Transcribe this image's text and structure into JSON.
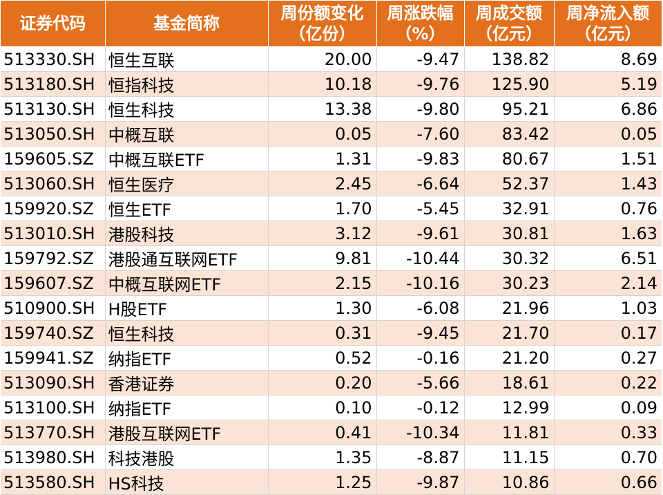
{
  "headers": [
    [
      "证券代码"
    ],
    [
      "基金简称"
    ],
    [
      "周份额变化",
      "（亿份）"
    ],
    [
      "周涨跌幅",
      "（%）"
    ],
    [
      "周成交额",
      "（亿元）"
    ],
    [
      "周净流入额",
      "（亿元）"
    ]
  ],
  "rows": [
    [
      "513330.SH",
      "恒生互联",
      "20.00",
      "-9.47",
      "138.82",
      "8.69"
    ],
    [
      "513180.SH",
      "恒指科技",
      "10.18",
      "-9.76",
      "125.90",
      "5.19"
    ],
    [
      "513130.SH",
      "恒生科技",
      "13.38",
      "-9.80",
      "95.21",
      "6.86"
    ],
    [
      "513050.SH",
      "中概互联",
      "0.05",
      "-7.60",
      "83.42",
      "0.05"
    ],
    [
      "159605.SZ",
      "中概互联ETF",
      "1.31",
      "-9.83",
      "80.67",
      "1.51"
    ],
    [
      "513060.SH",
      "恒生医疗",
      "2.45",
      "-6.64",
      "52.37",
      "1.43"
    ],
    [
      "159920.SZ",
      "恒生ETF",
      "1.70",
      "-5.45",
      "32.91",
      "0.76"
    ],
    [
      "513010.SH",
      "港股科技",
      "3.12",
      "-9.61",
      "30.81",
      "1.63"
    ],
    [
      "159792.SZ",
      "港股通互联网ETF",
      "9.81",
      "-10.44",
      "30.32",
      "6.51"
    ],
    [
      "159607.SZ",
      "中概互联网ETF",
      "2.15",
      "-10.16",
      "30.23",
      "2.14"
    ],
    [
      "510900.SH",
      "H股ETF",
      "1.30",
      "-6.08",
      "21.96",
      "1.03"
    ],
    [
      "159740.SZ",
      "恒生科技",
      "0.31",
      "-9.45",
      "21.70",
      "0.17"
    ],
    [
      "159941.SZ",
      "纳指ETF",
      "0.52",
      "-0.16",
      "21.20",
      "0.27"
    ],
    [
      "513090.SH",
      "香港证券",
      "0.20",
      "-5.66",
      "18.61",
      "0.22"
    ],
    [
      "513100.SH",
      "纳指ETF",
      "0.10",
      "-0.12",
      "12.99",
      "0.09"
    ],
    [
      "513770.SH",
      "港股互联网ETF",
      "0.41",
      "-10.34",
      "11.81",
      "0.33"
    ],
    [
      "513980.SH",
      "科技港股",
      "1.35",
      "-8.87",
      "11.15",
      "0.70"
    ],
    [
      "513580.SH",
      "HS科技",
      "1.25",
      "-9.87",
      "10.86",
      "0.66"
    ]
  ],
  "colors": {
    "header_bg": "#e2701d",
    "header_text": "#ffffff",
    "row_alt_bg": "#fbe4d5",
    "row_bg": "#ffffff"
  }
}
